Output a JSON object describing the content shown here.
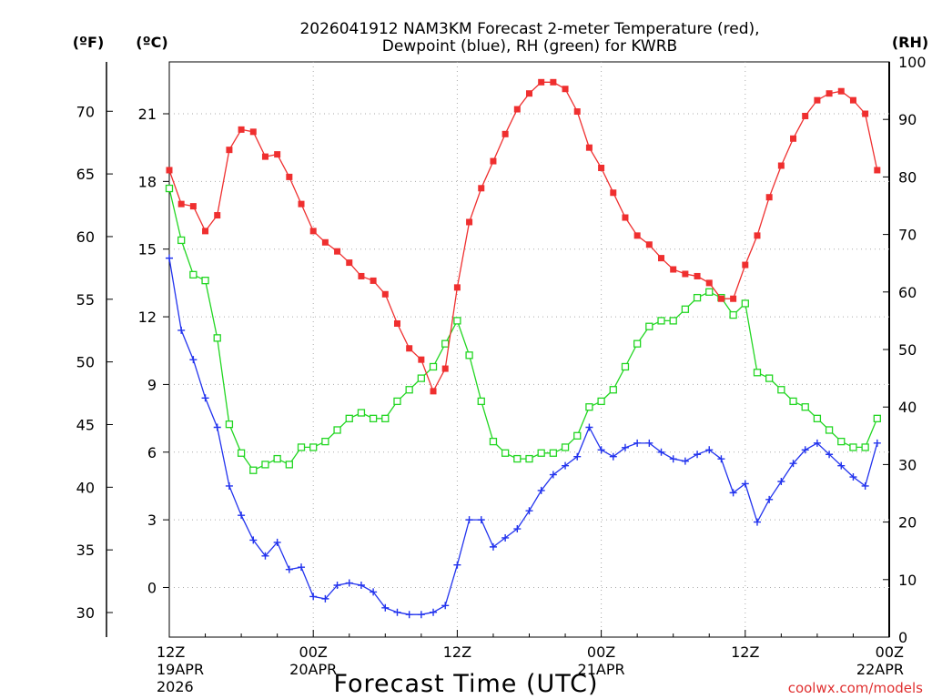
{
  "chart_data": {
    "type": "line",
    "title": "2026041912 NAM3KM Forecast 2-meter Temperature (red),",
    "subtitle": "Dewpoint (blue), RH (green) for KWRB",
    "xlabel": "Forecast Time (UTC)",
    "credit": "coolwx.com/models",
    "units_left_outer": "(ºF)",
    "units_left_inner": "(ºC)",
    "units_right": "(RH)",
    "x_range_hours": [
      0,
      60
    ],
    "y_celsius_range": [
      -2.2,
      23.3
    ],
    "y_rh_range": [
      0,
      100
    ],
    "x_ticks": [
      {
        "hour": 0,
        "line1": "12Z",
        "line2": "19APR",
        "line3": "2026"
      },
      {
        "hour": 12,
        "line1": "00Z",
        "line2": "20APR",
        "line3": ""
      },
      {
        "hour": 24,
        "line1": "12Z",
        "line2": "",
        "line3": ""
      },
      {
        "hour": 36,
        "line1": "00Z",
        "line2": "21APR",
        "line3": ""
      },
      {
        "hour": 48,
        "line1": "12Z",
        "line2": "",
        "line3": ""
      },
      {
        "hour": 60,
        "line1": "00Z",
        "line2": "22APR",
        "line3": ""
      }
    ],
    "y_ticks_c": [
      0,
      3,
      6,
      9,
      12,
      15,
      18,
      21
    ],
    "y_ticks_f": [
      30,
      35,
      40,
      45,
      50,
      55,
      60,
      65,
      70
    ],
    "y_ticks_rh": [
      0,
      10,
      20,
      30,
      40,
      50,
      60,
      70,
      80,
      90,
      100
    ],
    "series": [
      {
        "name": "Temperature",
        "color": "#ef2f2f",
        "marker": "filled-square",
        "axis": "celsius",
        "values": [
          18.5,
          17.0,
          16.9,
          15.8,
          16.5,
          19.4,
          20.3,
          20.2,
          19.1,
          19.2,
          18.2,
          17.0,
          15.8,
          15.3,
          14.9,
          14.4,
          13.8,
          13.6,
          13.0,
          11.7,
          10.6,
          10.1,
          8.7,
          9.7,
          13.3,
          16.2,
          17.7,
          18.9,
          20.1,
          21.2,
          21.9,
          22.4,
          22.4,
          22.1,
          21.1,
          19.5,
          18.6,
          17.5,
          16.4,
          15.6,
          15.2,
          14.6,
          14.1,
          13.9,
          13.8,
          13.5,
          12.8,
          12.8,
          14.3,
          15.6,
          17.3,
          18.7,
          19.9,
          20.9,
          21.6,
          21.9,
          22.0,
          21.6,
          21.0,
          18.5
        ]
      },
      {
        "name": "Dewpoint",
        "color": "#2233ee",
        "marker": "plus",
        "axis": "celsius",
        "values": [
          14.6,
          11.4,
          10.1,
          8.4,
          7.1,
          4.5,
          3.2,
          2.1,
          1.4,
          2.0,
          0.8,
          0.9,
          -0.4,
          -0.5,
          0.1,
          0.2,
          0.1,
          -0.2,
          -0.9,
          -1.1,
          -1.2,
          -1.2,
          -1.1,
          -0.8,
          1.0,
          3.0,
          3.0,
          1.8,
          2.2,
          2.6,
          3.4,
          4.3,
          5.0,
          5.4,
          5.8,
          7.1,
          6.1,
          5.8,
          6.2,
          6.4,
          6.4,
          6.0,
          5.7,
          5.6,
          5.9,
          6.1,
          5.7,
          4.2,
          4.6,
          2.9,
          3.9,
          4.7,
          5.5,
          6.1,
          6.4,
          5.9,
          5.4,
          4.9,
          4.5,
          6.4
        ]
      },
      {
        "name": "Relative Humidity",
        "color": "#22d622",
        "marker": "open-square",
        "axis": "rh",
        "values": [
          78,
          69,
          63,
          62,
          52,
          37,
          32,
          29,
          30,
          31,
          30,
          33,
          33,
          34,
          36,
          38,
          39,
          38,
          38,
          41,
          43,
          45,
          47,
          51,
          55,
          49,
          41,
          34,
          32,
          31,
          31,
          32,
          32,
          33,
          35,
          40,
          41,
          43,
          47,
          51,
          54,
          55,
          55,
          57,
          59,
          60,
          59,
          56,
          58,
          46,
          45,
          43,
          41,
          40,
          38,
          36,
          34,
          33,
          33,
          38
        ]
      }
    ]
  }
}
